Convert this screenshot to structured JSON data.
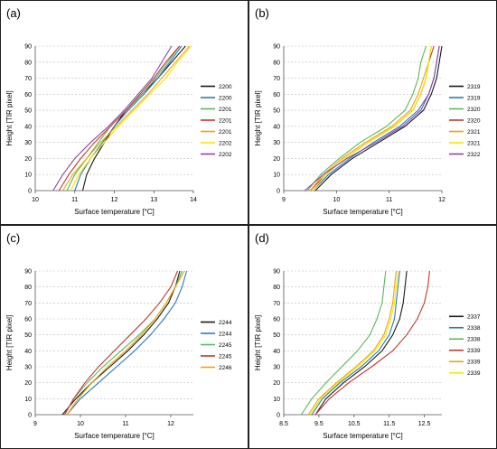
{
  "chart_data": [
    {
      "panel_label": "(a)",
      "type": "line",
      "xlabel": "Surface temperature [°C]",
      "ylabel": "Height  [TIR pixel]",
      "xlim": [
        10,
        14
      ],
      "ylim": [
        0,
        90
      ],
      "xticks": [
        10,
        11,
        12,
        13,
        14
      ],
      "yticks": [
        0,
        10,
        20,
        30,
        40,
        50,
        60,
        70,
        80,
        90
      ],
      "grid": "horizontal dashed",
      "legend_position": "right",
      "series": [
        {
          "name": "2200",
          "color": "#1a1a1a",
          "x": [
            11.2,
            11.3,
            11.5,
            11.75,
            12.0,
            12.3,
            12.7,
            13.1,
            13.45,
            13.8
          ],
          "y": [
            0,
            10,
            20,
            30,
            40,
            50,
            60,
            70,
            80,
            90
          ]
        },
        {
          "name": "2200",
          "color": "#2a7bbf",
          "x": [
            11.0,
            11.15,
            11.4,
            11.7,
            12.0,
            12.35,
            12.75,
            13.1,
            13.4,
            13.7
          ],
          "y": [
            0,
            10,
            20,
            30,
            40,
            50,
            60,
            70,
            80,
            90
          ]
        },
        {
          "name": "2201",
          "color": "#5cb85c",
          "x": [
            10.8,
            11.0,
            11.3,
            11.6,
            11.9,
            12.3,
            12.7,
            13.05,
            13.35,
            13.65
          ],
          "y": [
            0,
            10,
            20,
            30,
            40,
            50,
            60,
            70,
            80,
            90
          ]
        },
        {
          "name": "2201",
          "color": "#c0392b",
          "x": [
            10.6,
            10.85,
            11.15,
            11.5,
            11.9,
            12.3,
            12.65,
            13.0,
            13.3,
            13.65
          ],
          "y": [
            0,
            10,
            20,
            30,
            40,
            50,
            60,
            70,
            80,
            90
          ]
        },
        {
          "name": "2201",
          "color": "#f0a500",
          "x": [
            10.7,
            10.95,
            11.3,
            11.65,
            12.05,
            12.45,
            12.85,
            13.2,
            13.55,
            13.9
          ],
          "y": [
            0,
            10,
            20,
            30,
            40,
            50,
            60,
            70,
            80,
            90
          ]
        },
        {
          "name": "2202",
          "color": "#f5e800",
          "x": [
            10.9,
            11.1,
            11.4,
            11.75,
            12.1,
            12.5,
            12.9,
            13.3,
            13.6,
            13.95
          ],
          "y": [
            0,
            10,
            20,
            30,
            40,
            50,
            60,
            70,
            80,
            90
          ]
        },
        {
          "name": "2202",
          "color": "#8e44ad",
          "x": [
            10.45,
            10.7,
            11.0,
            11.4,
            11.85,
            12.25,
            12.6,
            12.95,
            13.2,
            13.45
          ],
          "y": [
            0,
            10,
            20,
            30,
            40,
            50,
            60,
            70,
            80,
            90
          ]
        }
      ]
    },
    {
      "panel_label": "(b)",
      "type": "line",
      "xlabel": "Surface temperature [°C]",
      "ylabel": "Height  [TIR pixel]",
      "xlim": [
        9,
        12
      ],
      "ylim": [
        0,
        90
      ],
      "xticks": [
        9,
        10,
        11,
        12
      ],
      "yticks": [
        0,
        10,
        20,
        30,
        40,
        50,
        60,
        70,
        80,
        90
      ],
      "grid": "horizontal dashed",
      "legend_position": "right",
      "series": [
        {
          "name": "2319",
          "color": "#1a1a1a",
          "x": [
            9.6,
            9.9,
            10.3,
            10.8,
            11.3,
            11.65,
            11.8,
            11.9,
            11.95,
            12.0
          ],
          "y": [
            0,
            10,
            20,
            30,
            40,
            50,
            60,
            70,
            80,
            90
          ]
        },
        {
          "name": "2319",
          "color": "#2a7bbf",
          "x": [
            9.55,
            9.85,
            10.25,
            10.7,
            11.2,
            11.55,
            11.75,
            11.85,
            11.9,
            11.95
          ],
          "y": [
            0,
            10,
            20,
            30,
            40,
            50,
            60,
            70,
            80,
            90
          ]
        },
        {
          "name": "2320",
          "color": "#5cb85c",
          "x": [
            9.45,
            9.7,
            10.05,
            10.45,
            10.95,
            11.3,
            11.45,
            11.55,
            11.6,
            11.7
          ],
          "y": [
            0,
            10,
            20,
            30,
            40,
            50,
            60,
            70,
            80,
            90
          ]
        },
        {
          "name": "2320",
          "color": "#c0392b",
          "x": [
            9.5,
            9.8,
            10.15,
            10.6,
            11.1,
            11.45,
            11.6,
            11.7,
            11.75,
            11.85
          ],
          "y": [
            0,
            10,
            20,
            30,
            40,
            50,
            60,
            70,
            80,
            90
          ]
        },
        {
          "name": "2321",
          "color": "#f0a500",
          "x": [
            9.5,
            9.75,
            10.1,
            10.55,
            11.05,
            11.4,
            11.55,
            11.65,
            11.75,
            11.8
          ],
          "y": [
            0,
            10,
            20,
            30,
            40,
            50,
            60,
            70,
            80,
            90
          ]
        },
        {
          "name": "2321",
          "color": "#f5e800",
          "x": [
            9.55,
            9.8,
            10.15,
            10.6,
            11.1,
            11.45,
            11.6,
            11.7,
            11.75,
            11.8
          ],
          "y": [
            0,
            10,
            20,
            30,
            40,
            50,
            60,
            70,
            80,
            90
          ]
        },
        {
          "name": "2322",
          "color": "#8e44ad",
          "x": [
            9.4,
            9.75,
            10.2,
            10.75,
            11.25,
            11.6,
            11.75,
            11.85,
            11.9,
            11.95
          ],
          "y": [
            0,
            10,
            20,
            30,
            40,
            50,
            60,
            70,
            80,
            90
          ]
        }
      ]
    },
    {
      "panel_label": "(c)",
      "type": "line",
      "xlabel": "Surface temperature [°C]",
      "ylabel": "Height  [TIR pixel]",
      "xlim": [
        9,
        12.5
      ],
      "ylim": [
        0,
        90
      ],
      "xticks": [
        9,
        10,
        11,
        12
      ],
      "yticks": [
        0,
        10,
        20,
        30,
        40,
        50,
        60,
        70,
        80,
        90
      ],
      "grid": "horizontal dashed",
      "legend_position": "right",
      "series": [
        {
          "name": "2244",
          "color": "#1a1a1a",
          "x": [
            9.6,
            9.9,
            10.25,
            10.65,
            11.05,
            11.4,
            11.7,
            11.95,
            12.1,
            12.2
          ],
          "y": [
            0,
            10,
            20,
            30,
            40,
            50,
            60,
            70,
            80,
            90
          ]
        },
        {
          "name": "2244",
          "color": "#2a7bbf",
          "x": [
            9.7,
            10.0,
            10.4,
            10.8,
            11.2,
            11.55,
            11.85,
            12.1,
            12.25,
            12.35
          ],
          "y": [
            0,
            10,
            20,
            30,
            40,
            50,
            60,
            70,
            80,
            90
          ]
        },
        {
          "name": "2245",
          "color": "#5cb85c",
          "x": [
            9.65,
            9.85,
            10.15,
            10.5,
            10.9,
            11.3,
            11.65,
            11.9,
            12.1,
            12.25
          ],
          "y": [
            0,
            10,
            20,
            30,
            40,
            50,
            60,
            70,
            80,
            90
          ]
        },
        {
          "name": "2245",
          "color": "#c0392b",
          "x": [
            9.65,
            9.85,
            10.1,
            10.4,
            10.75,
            11.1,
            11.45,
            11.75,
            12.0,
            12.15
          ],
          "y": [
            0,
            10,
            20,
            30,
            40,
            50,
            60,
            70,
            80,
            90
          ]
        },
        {
          "name": "2246",
          "color": "#f0a500",
          "x": [
            9.7,
            9.95,
            10.25,
            10.6,
            11.0,
            11.35,
            11.65,
            11.9,
            12.1,
            12.3
          ],
          "y": [
            0,
            10,
            20,
            30,
            40,
            50,
            60,
            70,
            80,
            90
          ]
        }
      ]
    },
    {
      "panel_label": "(d)",
      "type": "line",
      "xlabel": "Surface temperature [°C]",
      "ylabel": "Height  [TIR pixel]",
      "xlim": [
        8.5,
        13
      ],
      "ylim": [
        0,
        90
      ],
      "xticks": [
        8.5,
        9.5,
        10.5,
        11.5,
        12.5
      ],
      "yticks": [
        0,
        10,
        20,
        30,
        40,
        50,
        60,
        70,
        80,
        90
      ],
      "grid": "horizontal dashed",
      "legend_position": "right",
      "series": [
        {
          "name": "2337",
          "color": "#1a1a1a",
          "x": [
            9.4,
            9.7,
            10.2,
            10.8,
            11.3,
            11.6,
            11.8,
            11.9,
            11.95,
            12.0
          ],
          "y": [
            0,
            10,
            20,
            30,
            40,
            50,
            60,
            70,
            80,
            90
          ]
        },
        {
          "name": "2338",
          "color": "#2a7bbf",
          "x": [
            9.3,
            9.6,
            10.1,
            10.7,
            11.2,
            11.5,
            11.65,
            11.7,
            11.75,
            11.8
          ],
          "y": [
            0,
            10,
            20,
            30,
            40,
            50,
            60,
            70,
            80,
            90
          ]
        },
        {
          "name": "2338",
          "color": "#5cb85c",
          "x": [
            9.0,
            9.3,
            9.7,
            10.15,
            10.6,
            10.95,
            11.15,
            11.3,
            11.35,
            11.4
          ],
          "y": [
            0,
            10,
            20,
            30,
            40,
            50,
            60,
            70,
            80,
            90
          ]
        },
        {
          "name": "2339",
          "color": "#c0392b",
          "x": [
            9.4,
            9.8,
            10.35,
            11.0,
            11.6,
            12.0,
            12.3,
            12.5,
            12.6,
            12.65
          ],
          "y": [
            0,
            10,
            20,
            30,
            40,
            50,
            60,
            70,
            80,
            90
          ]
        },
        {
          "name": "2339",
          "color": "#f0a500",
          "x": [
            9.2,
            9.5,
            10.0,
            10.55,
            11.05,
            11.35,
            11.5,
            11.6,
            11.65,
            11.7
          ],
          "y": [
            0,
            10,
            20,
            30,
            40,
            50,
            60,
            70,
            80,
            90
          ]
        },
        {
          "name": "2339",
          "color": "#f5e800",
          "x": [
            9.25,
            9.55,
            10.05,
            10.6,
            11.1,
            11.4,
            11.55,
            11.65,
            11.7,
            11.75
          ],
          "y": [
            0,
            10,
            20,
            30,
            40,
            50,
            60,
            70,
            80,
            90
          ]
        }
      ]
    }
  ]
}
